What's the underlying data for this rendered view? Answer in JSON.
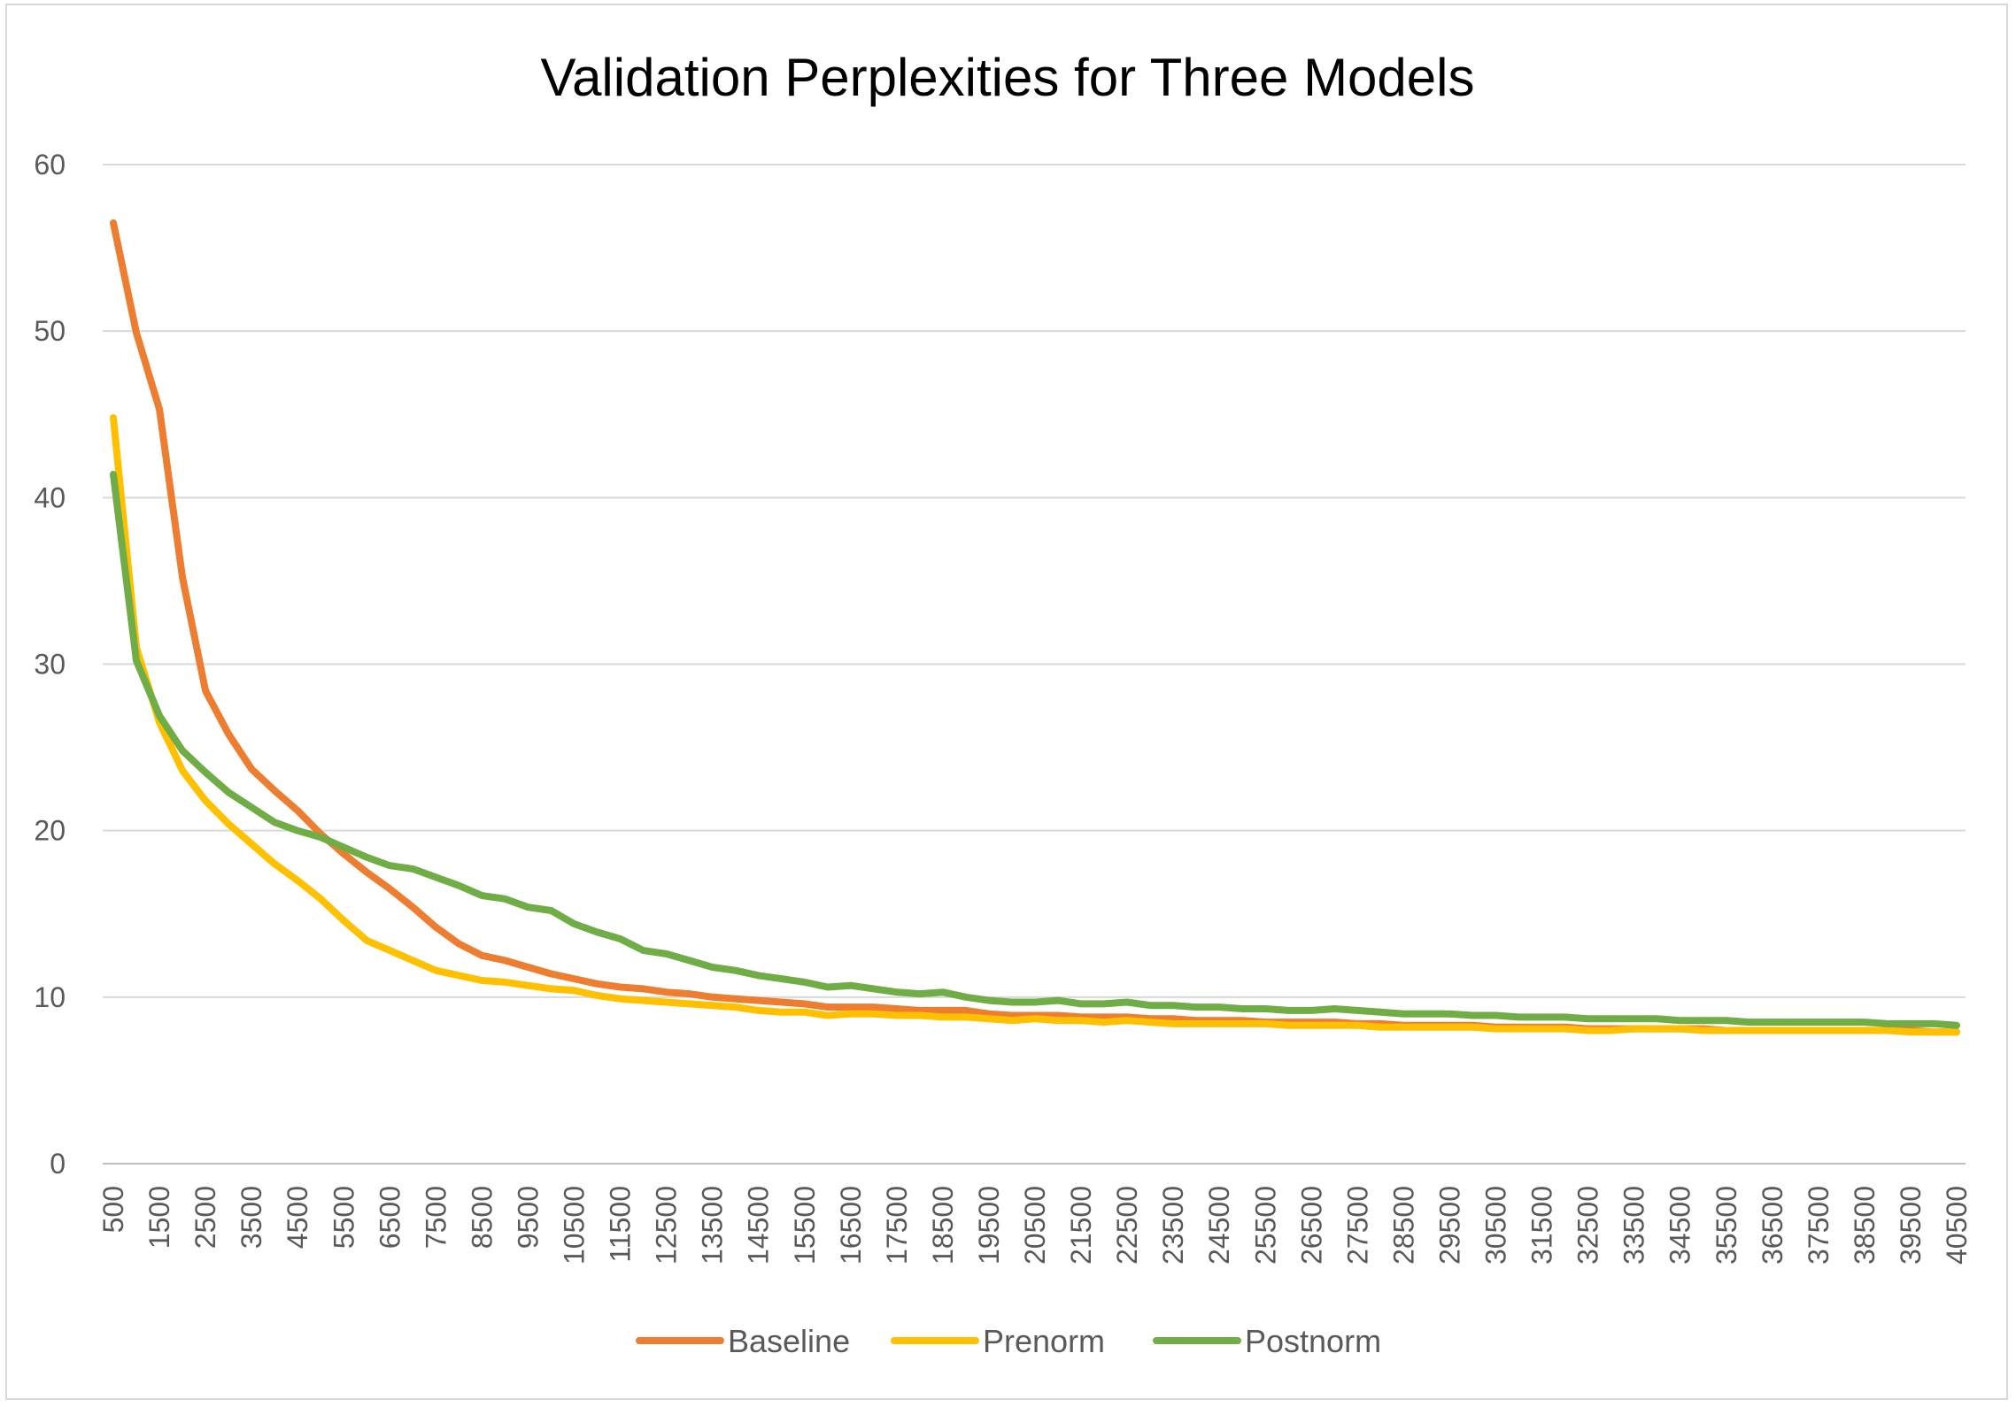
{
  "chart_data": {
    "type": "line",
    "title": "Validation Perplexities for Three Models",
    "xlabel": "",
    "ylabel": "",
    "ylim": [
      0,
      60
    ],
    "yticks": [
      0,
      10,
      20,
      30,
      40,
      50,
      60
    ],
    "grid": true,
    "legend_position": "bottom",
    "x": [
      500,
      1000,
      1500,
      2000,
      2500,
      3000,
      3500,
      4000,
      4500,
      5000,
      5500,
      6000,
      6500,
      7000,
      7500,
      8000,
      8500,
      9000,
      9500,
      10000,
      10500,
      11000,
      11500,
      12000,
      12500,
      13000,
      13500,
      14000,
      14500,
      15000,
      15500,
      16000,
      16500,
      17000,
      17500,
      18000,
      18500,
      19000,
      19500,
      20000,
      20500,
      21000,
      21500,
      22000,
      22500,
      23000,
      23500,
      24000,
      24500,
      25000,
      25500,
      26000,
      26500,
      27000,
      27500,
      28000,
      28500,
      29000,
      29500,
      30000,
      30500,
      31000,
      31500,
      32000,
      32500,
      33000,
      33500,
      34000,
      34500,
      35000,
      35500,
      36000,
      36500,
      37000,
      37500,
      38000,
      38500,
      39000,
      39500,
      40000,
      40500
    ],
    "xtick_labels": [
      "500",
      "1500",
      "2500",
      "3500",
      "4500",
      "5500",
      "6500",
      "7500",
      "8500",
      "9500",
      "10500",
      "11500",
      "12500",
      "13500",
      "14500",
      "15500",
      "16500",
      "17500",
      "18500",
      "19500",
      "20500",
      "21500",
      "22500",
      "23500",
      "24500",
      "25500",
      "26500",
      "27500",
      "28500",
      "29500",
      "30500",
      "31500",
      "32500",
      "33500",
      "34500",
      "35500",
      "36500",
      "37500",
      "38500",
      "39500",
      "40500"
    ],
    "series": [
      {
        "name": "Baseline",
        "color": "#ED7D31",
        "values": [
          56.5,
          49.9,
          45.3,
          35.2,
          28.4,
          25.8,
          23.7,
          22.4,
          21.2,
          19.8,
          18.6,
          17.5,
          16.5,
          15.4,
          14.2,
          13.2,
          12.5,
          12.2,
          11.8,
          11.4,
          11.1,
          10.8,
          10.6,
          10.5,
          10.3,
          10.2,
          10.0,
          9.9,
          9.8,
          9.7,
          9.6,
          9.4,
          9.4,
          9.4,
          9.3,
          9.2,
          9.2,
          9.2,
          9.0,
          8.9,
          8.9,
          8.9,
          8.8,
          8.8,
          8.8,
          8.7,
          8.7,
          8.6,
          8.6,
          8.6,
          8.5,
          8.5,
          8.5,
          8.5,
          8.4,
          8.4,
          8.3,
          8.3,
          8.3,
          8.3,
          8.2,
          8.2,
          8.2,
          8.2,
          8.1,
          8.1,
          8.1,
          8.1,
          8.1,
          8.1,
          8.0,
          8.0,
          8.0,
          8.0,
          8.0,
          8.0,
          8.0,
          8.0,
          8.0,
          7.9,
          7.9
        ]
      },
      {
        "name": "Prenorm",
        "color": "#FFC000",
        "values": [
          44.8,
          31.0,
          26.5,
          23.6,
          21.8,
          20.4,
          19.2,
          18.0,
          17.0,
          15.9,
          14.6,
          13.4,
          12.8,
          12.2,
          11.6,
          11.3,
          11.0,
          10.9,
          10.7,
          10.5,
          10.4,
          10.1,
          9.9,
          9.8,
          9.7,
          9.6,
          9.5,
          9.4,
          9.2,
          9.1,
          9.1,
          8.9,
          9.0,
          9.0,
          8.9,
          8.9,
          8.8,
          8.8,
          8.7,
          8.6,
          8.7,
          8.6,
          8.6,
          8.5,
          8.6,
          8.5,
          8.4,
          8.4,
          8.4,
          8.4,
          8.4,
          8.3,
          8.3,
          8.3,
          8.3,
          8.2,
          8.2,
          8.2,
          8.2,
          8.2,
          8.1,
          8.1,
          8.1,
          8.1,
          8.0,
          8.0,
          8.1,
          8.1,
          8.1,
          8.0,
          8.0,
          8.0,
          8.0,
          8.0,
          8.0,
          8.0,
          8.0,
          8.0,
          7.9,
          7.9,
          7.9
        ]
      },
      {
        "name": "Postnorm",
        "color": "#70AD47",
        "values": [
          41.4,
          30.2,
          26.9,
          24.8,
          23.5,
          22.3,
          21.4,
          20.5,
          20.0,
          19.6,
          19.0,
          18.4,
          17.9,
          17.7,
          17.2,
          16.7,
          16.1,
          15.9,
          15.4,
          15.2,
          14.4,
          13.9,
          13.5,
          12.8,
          12.6,
          12.2,
          11.8,
          11.6,
          11.3,
          11.1,
          10.9,
          10.6,
          10.7,
          10.5,
          10.3,
          10.2,
          10.3,
          10.0,
          9.8,
          9.7,
          9.7,
          9.8,
          9.6,
          9.6,
          9.7,
          9.5,
          9.5,
          9.4,
          9.4,
          9.3,
          9.3,
          9.2,
          9.2,
          9.3,
          9.2,
          9.1,
          9.0,
          9.0,
          9.0,
          8.9,
          8.9,
          8.8,
          8.8,
          8.8,
          8.7,
          8.7,
          8.7,
          8.7,
          8.6,
          8.6,
          8.6,
          8.5,
          8.5,
          8.5,
          8.5,
          8.5,
          8.5,
          8.4,
          8.4,
          8.4,
          8.3
        ]
      }
    ]
  }
}
